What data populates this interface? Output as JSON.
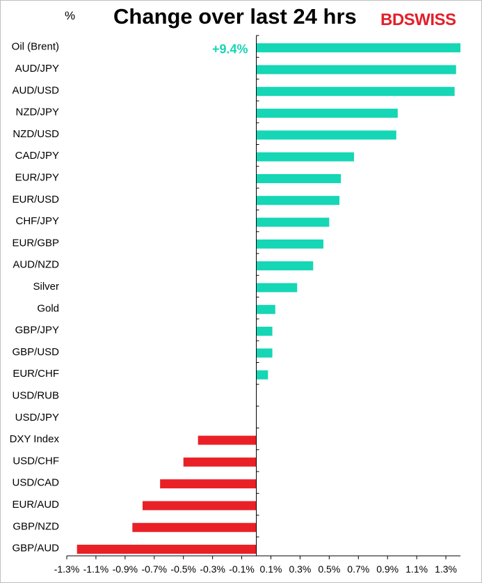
{
  "chart_data": {
    "type": "bar",
    "orientation": "horizontal",
    "title": "Change over last 24 hrs",
    "unit_label": "%",
    "brand": {
      "part1": "BD",
      "part2": "SWISS",
      "color": "#e3202a"
    },
    "categories": [
      "Oil (Brent)",
      "AUD/JPY",
      "AUD/USD",
      "NZD/JPY",
      "NZD/USD",
      "CAD/JPY",
      "EUR/JPY",
      "EUR/USD",
      "CHF/JPY",
      "EUR/GBP",
      "AUD/NZD",
      "Silver",
      "Gold",
      "GBP/JPY",
      "GBP/USD",
      "EUR/CHF",
      "USD/RUB",
      "USD/JPY",
      "DXY Index",
      "USD/CHF",
      "USD/CAD",
      "EUR/AUD",
      "GBP/NZD",
      "GBP/AUD"
    ],
    "values": [
      1.4,
      1.37,
      1.36,
      0.97,
      0.96,
      0.67,
      0.58,
      0.57,
      0.5,
      0.46,
      0.39,
      0.28,
      0.13,
      0.11,
      0.11,
      0.08,
      0.0,
      0.0,
      -0.4,
      -0.5,
      -0.66,
      -0.78,
      -0.85,
      -1.23
    ],
    "annotation": {
      "text": "+9.4%",
      "category": "Oil (Brent)"
    },
    "xlim": [
      -1.3,
      1.4
    ],
    "xticks": [
      "-1.3%",
      "-1.1%",
      "-0.9%",
      "-0.7%",
      "-0.5%",
      "-0.3%",
      "-0.1%",
      "0.1%",
      "0.3%",
      "0.5%",
      "0.7%",
      "0.9%",
      "1.1%",
      "1.3%"
    ],
    "xtick_values": [
      -1.3,
      -1.1,
      -0.9,
      -0.7,
      -0.5,
      -0.3,
      -0.1,
      0.1,
      0.3,
      0.5,
      0.7,
      0.9,
      1.1,
      1.3
    ],
    "colors": {
      "positive": "#15d6b5",
      "negative": "#ea2027",
      "annotation": "#15d6b5"
    },
    "grid": false,
    "legend": "none"
  }
}
